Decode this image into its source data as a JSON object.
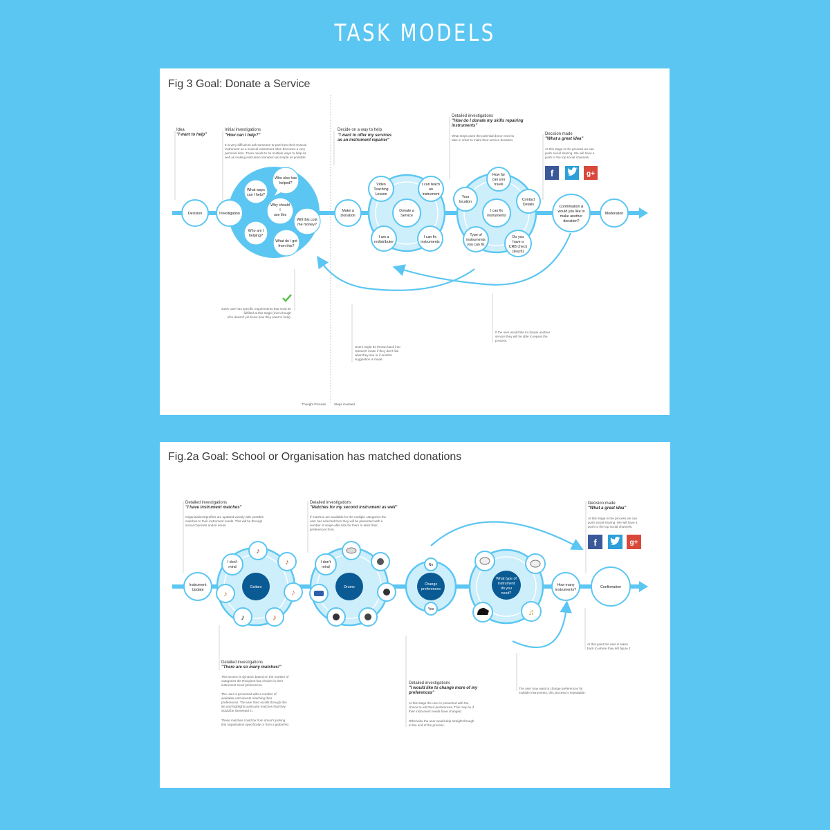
{
  "page": {
    "title": "TASK MODELS"
  },
  "fig3": {
    "title": "Fig 3 Goal: Donate a Service",
    "footer": {
      "left": "Thought Process",
      "right": "Steps involved"
    },
    "annotations": {
      "idea": {
        "heading": "Idea",
        "quote": "\"I want to help\""
      },
      "initial": {
        "heading": "Initial investigations",
        "quote": "\"How can I help?\"",
        "body": [
          "It is very difficult to ask someone to part from their musical",
          "instrument as a musical instrument often becomes a very",
          "personal item. There needs to be multiple ways to help as",
          "well as making instrument donation as simple as possible."
        ]
      },
      "decide": {
        "heading": "Decide on a way to help",
        "quote": [
          "\"I want to offer my services",
          "as an instrument repairer\""
        ]
      },
      "detailed": {
        "heading": "Detailed investigations",
        "quote": [
          "\"How do I donate my skills repairing",
          "instruments\""
        ],
        "body": [
          "What steps does the potential donor need to",
          "take in order to make their service donation."
        ]
      },
      "decision_made": {
        "heading": "Decision made",
        "quote": "\"What a great idea\"",
        "body": [
          "At this stage in the process we can",
          "push social sharing. We will have a",
          "push to the top social channels."
        ]
      },
      "requirements": [
        "Each user has specific requirements that must be",
        "fulfilled at this stage (even though",
        "s/he doesn't yet know how they want to help)."
      ],
      "thrown_back": [
        "Users might be thrown back into",
        "research mode if they don't like",
        "what they see or if another",
        "suggestion is made."
      ],
      "repeat": [
        "If the user would like to donate another",
        "service they will be able to repeat the",
        "process."
      ]
    },
    "nodes": {
      "decision": "Decision",
      "investigation": "Investigation",
      "make_donation": [
        "Make a",
        "Donation"
      ],
      "confirmation": [
        "Confirmation &",
        "would you like to",
        "make another",
        "donation?"
      ],
      "moderation": "Moderation"
    },
    "thoughts": [
      [
        "Who else has",
        "helped?"
      ],
      [
        "What ways",
        "can I help?"
      ],
      [
        "Why should",
        "I",
        "use this",
        "service?"
      ],
      [
        "Will this cost",
        "me money?"
      ],
      [
        "Who am I",
        "helping?"
      ],
      [
        "What do I get",
        "from this?"
      ]
    ],
    "donate_service": {
      "center": [
        "Donate a",
        "Service"
      ],
      "options": [
        [
          "Video",
          "Teaching",
          "Lesson"
        ],
        [
          "I can teach",
          "an",
          "instrument"
        ],
        [
          "I am a",
          "redistributer"
        ],
        [
          "I can fix",
          "instruments"
        ]
      ]
    },
    "fix_instruments": {
      "center": [
        "I can fix",
        "instruments"
      ],
      "options": [
        [
          "How far",
          "can you",
          "travel"
        ],
        [
          "Your",
          "location"
        ],
        [
          "Contact",
          "Details"
        ],
        [
          "Type of",
          "instruments",
          "you can fix"
        ],
        [
          "Do you",
          "have a",
          "CRB check",
          "(teach)"
        ]
      ]
    },
    "colors": {
      "facebook": "#3b5998",
      "twitter": "#2d9fd9",
      "gplus": "#d8493b"
    }
  },
  "fig2a": {
    "title": "Fig.2a Goal: School or Organisation has matched donations",
    "annotations": {
      "detailed1": {
        "heading": "Detailed investigations",
        "quote": "\"I have instrument matches\"",
        "body": [
          "Organisations/profiles are updated weekly with possible",
          "matches to their instrument needs. This will be through",
          "social channels and/or email."
        ]
      },
      "detailed2": {
        "heading": "Detailed investigations",
        "quote": "\"Matches for my second instrument as well\"",
        "body": [
          "If matches are available for the multiple categories the",
          "user has selected then they will be presented with a",
          "number of swipe-able lists for them to tailor their",
          "preferences from."
        ]
      },
      "decision_made": {
        "heading": "Decision made",
        "quote": "\"What a great idea\"",
        "body": [
          "At this stage in the process we can",
          "push social sharing. We will have a",
          "push to the top social channels."
        ]
      },
      "detailed3": {
        "heading": "Detailed investigations",
        "quote": "\"There are so many matches!\"",
        "body": [
          "This section is dynamic based on the number of",
          "categories the Recipient has chosen in their",
          "instrument need preferences.",
          "",
          "The user is presented with a number of",
          "available instruments matching their",
          "preferences. The user then scrolls through this",
          "list and highlights particular matches that they",
          "would be interested in.",
          "",
          "These matches could be from donor's picking",
          "this organisation specifically or from a global list"
        ]
      },
      "detailed4": {
        "heading": "Detailed investigations",
        "quote": [
          "\"I would like to change more of my",
          "preferences\""
        ],
        "body": [
          "At this stage the user is presented with the",
          "choice to edit their preferences. This may be if",
          "their instrument needs have changed.",
          "",
          "Otherwise the user would skip straight through",
          "to the end of the process."
        ]
      },
      "change_note": [
        "The user may want to change preferences for",
        "multiple instruments, this process is repeatable."
      ],
      "taken_back": [
        "At this point the user is taken",
        "back to where they left figure 2"
      ]
    },
    "nodes": {
      "instrument_update": [
        "Instrument",
        "Update"
      ],
      "guitars": "Guitars",
      "drums": "Drums",
      "change_preferences": [
        "Change",
        "preferences"
      ],
      "no": "No",
      "yes": "Yes",
      "what_type": [
        "What type of",
        "instrument",
        "do you",
        "need?"
      ],
      "how_many": [
        "How many",
        "instruments?"
      ],
      "confirmation": "Confirmation",
      "dont_mind": [
        "I don't",
        "mind"
      ]
    }
  }
}
